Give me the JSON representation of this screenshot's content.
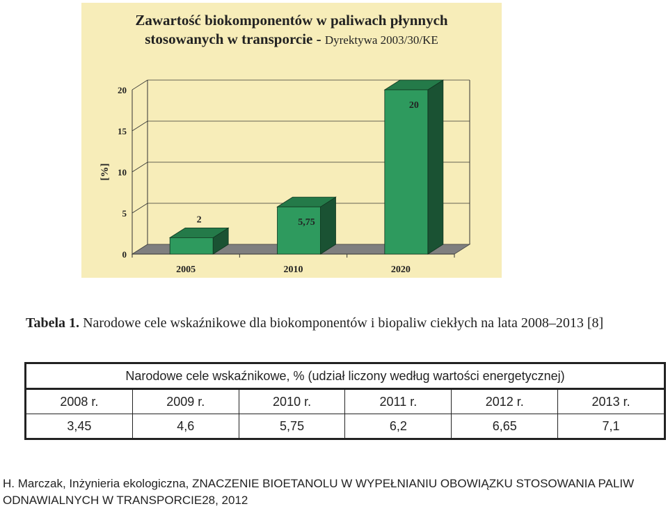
{
  "chart_data": {
    "type": "bar",
    "title": "Zawartość biokomponentów w paliwach płynnych",
    "title_line2": "stosowanych w transporcie -",
    "subtitle": "Dyrektywa 2003/30/KE",
    "ylabel": "[%]",
    "xlabel": "",
    "categories": [
      "2005",
      "2010",
      "2020"
    ],
    "values": [
      2,
      5.75,
      20
    ],
    "data_labels": [
      "2",
      "5,75",
      "20"
    ],
    "yticks": [
      "0",
      "5",
      "10",
      "15",
      "20"
    ],
    "ylim": [
      0,
      20
    ],
    "grid": true,
    "legend": "none",
    "colors": {
      "bar_front": "#2e9a5e",
      "bar_top": "#247a49",
      "bar_side": "#1a5233",
      "floor": "#7f7f7f",
      "panel": "#f7edb9"
    }
  },
  "table": {
    "label": "Tabela 1.",
    "caption": "Narodowe cele wskaźnikowe dla biokomponentów i biopaliw ciekłych na lata 2008–2013 [8]",
    "header": "Narodowe cele wskaźnikowe, % (udział liczony według wartości energetycznej)",
    "years": [
      "2008 r.",
      "2009 r.",
      "2010 r.",
      "2011 r.",
      "2012 r.",
      "2013 r."
    ],
    "values": [
      "3,45",
      "4,6",
      "5,75",
      "6,2",
      "6,65",
      "7,1"
    ]
  },
  "citation": "H. Marczak, Inżynieria ekologiczna, ZNACZENIE BIOETANOLU W WYPEŁNIANIU OBOWIĄZKU STOSOWANIA PALIW ODNAWIALNYCH W TRANSPORCIE28, 2012"
}
